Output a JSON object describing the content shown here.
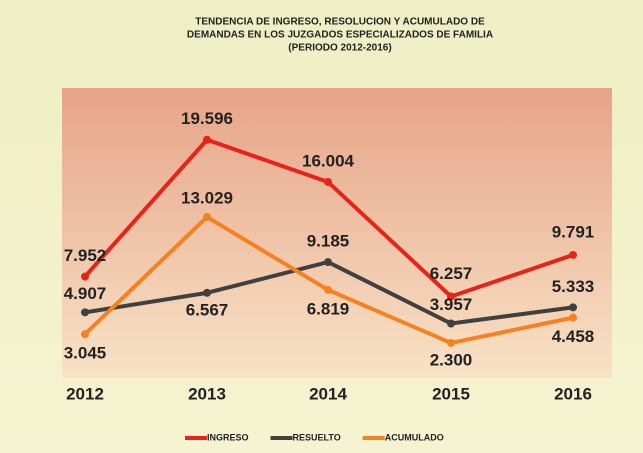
{
  "chart_data": {
    "type": "line",
    "title": [
      "TENDENCIA DE INGRESO, RESOLUCION Y ACUMULADO DE",
      "DEMANDAS EN LOS JUZGADOS ESPECIALIZADOS DE FAMILIA"
    ],
    "subtitle": "(PERIODO 2012-2016)",
    "categories": [
      "2012",
      "2013",
      "2014",
      "2015",
      "2016"
    ],
    "ylim": [
      0,
      24000
    ],
    "legend": "bottom",
    "series": [
      {
        "name": "INGRESO",
        "color": "#e8231a",
        "values": [
          7952,
          19596,
          16004,
          6257,
          9791
        ],
        "value_labels": [
          "7.952",
          "19.596",
          "16.004",
          "6.257",
          "9.791"
        ]
      },
      {
        "name": "RESUELTO",
        "color": "#404040",
        "values": [
          4907,
          6567,
          9185,
          3957,
          5333
        ],
        "value_labels": [
          "4.907",
          "6.567",
          "9.185",
          "3.957",
          "5.333"
        ]
      },
      {
        "name": "ACUMULADO",
        "color": "#f5821f",
        "values": [
          3045,
          13029,
          6819,
          2300,
          4458
        ],
        "value_labels": [
          "3.045",
          "13.029",
          "6.819",
          "2.300",
          "4.458"
        ]
      }
    ]
  }
}
